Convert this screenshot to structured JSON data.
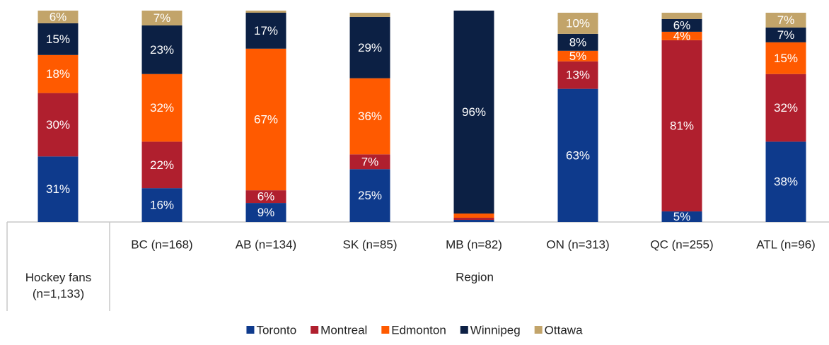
{
  "chart_data": {
    "type": "stacked_bar",
    "categories": [
      "Hockey fans (n=1,133)",
      "BC (n=168)",
      "AB (n=134)",
      "SK (n=85)",
      "MB (n=82)",
      "ON (n=313)",
      "QC (n=255)",
      "ATL (n=96)"
    ],
    "group_label": "Region",
    "ylim": [
      0,
      100
    ],
    "series": [
      {
        "name": "Toronto",
        "color": "#0e3a8c",
        "values": [
          31,
          16,
          9,
          25,
          1,
          63,
          5,
          38
        ],
        "value_labels": [
          "31%",
          "16%",
          "9%",
          "25%",
          null,
          "63%",
          "5%",
          "38%"
        ]
      },
      {
        "name": "Montreal",
        "color": "#b01f2e",
        "values": [
          30,
          22,
          6,
          7,
          1,
          13,
          81,
          32
        ],
        "value_labels": [
          "30%",
          "22%",
          "6%",
          "7%",
          null,
          "13%",
          "81%",
          "32%"
        ]
      },
      {
        "name": "Edmonton",
        "color": "#ff5a00",
        "values": [
          18,
          32,
          67,
          36,
          2,
          5,
          4,
          15
        ],
        "value_labels": [
          "18%",
          "32%",
          "67%",
          "36%",
          null,
          "5%",
          "4%",
          "15%"
        ]
      },
      {
        "name": "Winnipeg",
        "color": "#0c2044",
        "values": [
          15,
          23,
          17,
          29,
          96,
          8,
          6,
          7
        ],
        "value_labels": [
          "15%",
          "23%",
          "17%",
          "29%",
          "96%",
          "8%",
          "6%",
          "7%"
        ]
      },
      {
        "name": "Ottawa",
        "color": "#c2a46a",
        "values": [
          6,
          7,
          1,
          2,
          0,
          10,
          3,
          7
        ],
        "value_labels": [
          "6%",
          "7%",
          null,
          null,
          null,
          "10%",
          null,
          "7%"
        ]
      }
    ],
    "legend": "bottom"
  }
}
